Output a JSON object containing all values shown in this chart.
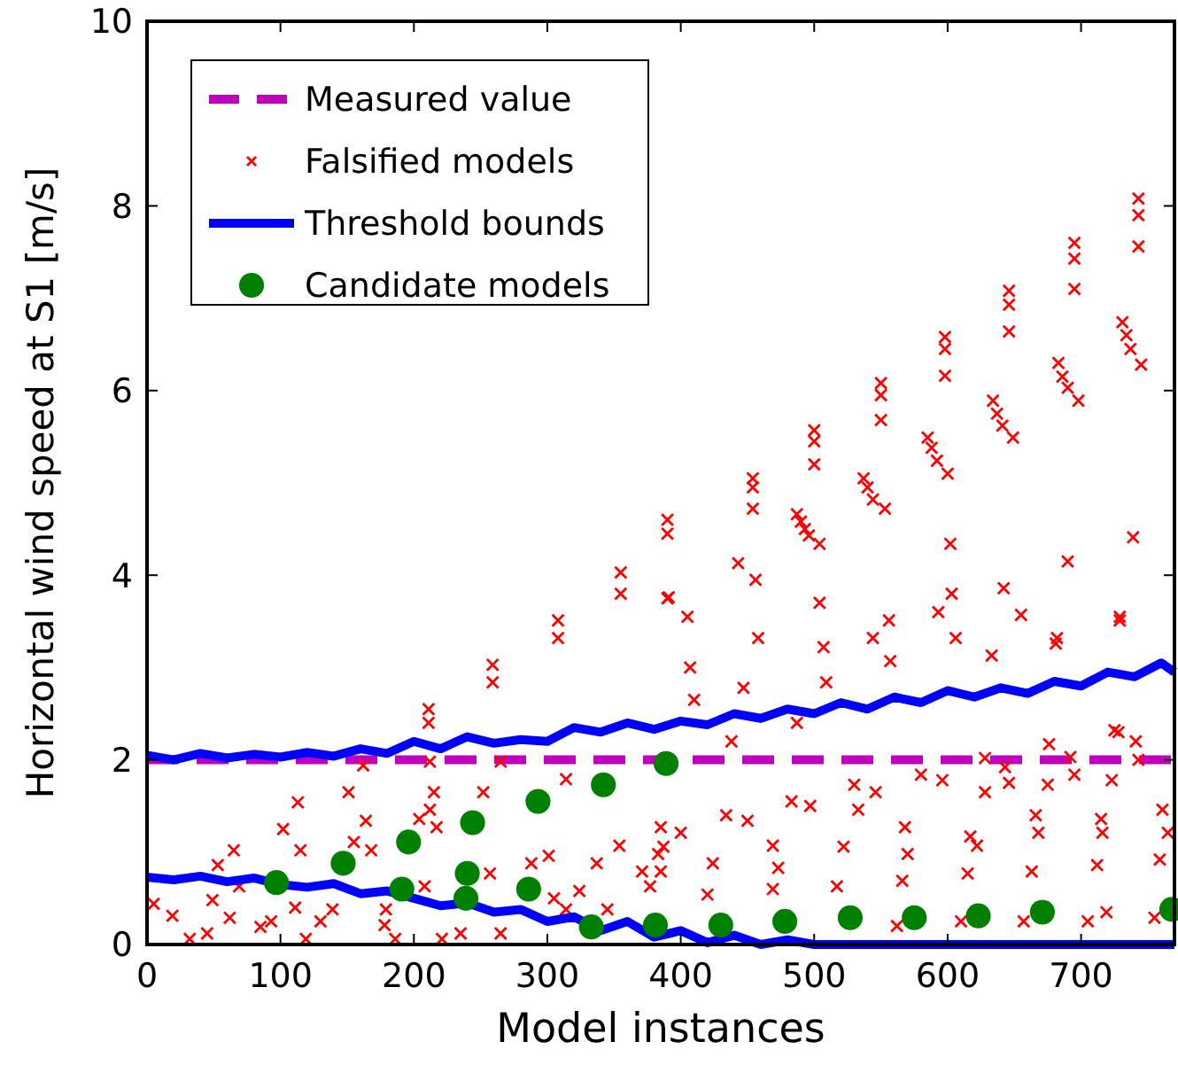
{
  "chart_data": {
    "type": "scatter",
    "xlabel": "Model instances",
    "ylabel": "Horizontal wind speed at S1 [m/s]",
    "xlim": [
      0,
      770
    ],
    "ylim": [
      0,
      10
    ],
    "xticks": [
      0,
      100,
      200,
      300,
      400,
      500,
      600,
      700
    ],
    "yticks": [
      0,
      2,
      4,
      6,
      8,
      10
    ],
    "grid": false,
    "legend": "top left",
    "series": [
      {
        "name": "Measured value",
        "type": "line",
        "color": "#bf00bf",
        "line_style": "dashed",
        "x": [
          0,
          770
        ],
        "values": [
          2,
          2
        ]
      },
      {
        "name": "Falsified models",
        "color": "#ff0000",
        "marker": "cross",
        "x": [
          211,
          211,
          259,
          259,
          308,
          308,
          355,
          355,
          391,
          390,
          390,
          390,
          454,
          454,
          454,
          500,
          500,
          500,
          550,
          550,
          550,
          598,
          598,
          598,
          646,
          646,
          646,
          695,
          695,
          695,
          743,
          743,
          743,
          487,
          490,
          493,
          496,
          504,
          537,
          540,
          544,
          553,
          585,
          588,
          592,
          600,
          634,
          637,
          641,
          649,
          683,
          686,
          690,
          698,
          731,
          734,
          737,
          745,
          385,
          387,
          385,
          400,
          420,
          424,
          434,
          450,
          469,
          469,
          473,
          483,
          497,
          517,
          522,
          530,
          533,
          546,
          566,
          568,
          570,
          580,
          596,
          615,
          617,
          622,
          628,
          643,
          663,
          666,
          668,
          675,
          692,
          695,
          712,
          715,
          716,
          723,
          728,
          741,
          743,
          759,
          761,
          765,
          562,
          610,
          657,
          705,
          719,
          755,
          628,
          646,
          676,
          725,
          410,
          438,
          487,
          447,
          509,
          557,
          633,
          681,
          729,
          407,
          405,
          443,
          456,
          458,
          504,
          507,
          556,
          544,
          603,
          593,
          606,
          642,
          655,
          690,
          682,
          729,
          739,
          602,
          5,
          19,
          32,
          45,
          49,
          62,
          53,
          65,
          69,
          85,
          93,
          102,
          113,
          115,
          111,
          119,
          130,
          139,
          151,
          164,
          155,
          168,
          178,
          186,
          179,
          204,
          215,
          217,
          208,
          221,
          235,
          252,
          257,
          265,
          288,
          301,
          305,
          314,
          324,
          337,
          345,
          354,
          371,
          383,
          377,
          265,
          314,
          162,
          212,
          212
        ],
        "values": [
          2.55,
          2.4,
          3.03,
          2.84,
          3.51,
          3.32,
          4.03,
          3.8,
          3.76,
          4.6,
          4.45,
          3.75,
          5.05,
          4.95,
          4.72,
          5.57,
          5.45,
          5.2,
          6.08,
          5.95,
          5.68,
          6.58,
          6.45,
          6.16,
          7.08,
          6.93,
          6.64,
          7.6,
          7.43,
          7.1,
          8.08,
          7.9,
          7.56,
          4.66,
          4.58,
          4.5,
          4.43,
          4.34,
          5.05,
          4.95,
          4.82,
          4.72,
          5.49,
          5.38,
          5.24,
          5.1,
          5.89,
          5.75,
          5.62,
          5.49,
          6.3,
          6.15,
          6.03,
          5.89,
          6.74,
          6.6,
          6.45,
          6.28,
          1.27,
          1.06,
          0.79,
          1.21,
          0.54,
          0.88,
          1.4,
          1.34,
          1.07,
          0.6,
          0.83,
          1.55,
          1.5,
          0.63,
          1.06,
          1.73,
          1.46,
          1.65,
          0.69,
          1.27,
          0.98,
          1.84,
          1.78,
          0.77,
          1.17,
          1.07,
          1.65,
          1.92,
          0.79,
          1.4,
          1.21,
          1.73,
          2.03,
          1.84,
          0.86,
          1.36,
          1.21,
          1.78,
          2.3,
          2.2,
          2.0,
          0.92,
          1.46,
          1.21,
          0.2,
          0.25,
          0.25,
          0.25,
          0.35,
          0.29,
          2.02,
          1.75,
          2.17,
          2.32,
          2.65,
          2.2,
          2.4,
          2.78,
          2.84,
          3.07,
          3.13,
          3.26,
          3.51,
          3.0,
          3.55,
          4.13,
          3.95,
          3.32,
          3.7,
          3.22,
          3.51,
          3.32,
          3.8,
          3.6,
          3.32,
          3.86,
          3.57,
          4.15,
          3.32,
          3.55,
          4.41,
          4.34,
          0.44,
          0.31,
          0.06,
          0.12,
          0.48,
          0.29,
          0.86,
          1.02,
          0.63,
          0.19,
          0.25,
          1.25,
          1.54,
          1.02,
          0.4,
          0.06,
          0.25,
          0.38,
          1.65,
          1.34,
          1.11,
          1.02,
          0.21,
          0.06,
          0.38,
          1.36,
          1.65,
          1.27,
          0.63,
          0.06,
          0.12,
          1.65,
          0.77,
          0.12,
          0.88,
          0.96,
          0.5,
          0.38,
          0.58,
          0.88,
          0.38,
          1.07,
          0.79,
          0.98,
          0.63,
          1.98,
          1.79,
          1.94,
          1.98,
          1.46
        ]
      },
      {
        "name": "Threshold bounds",
        "type": "line",
        "color": "#0000ff",
        "line_style": "solid",
        "x": [
          0,
          20,
          40,
          60,
          80,
          100,
          120,
          140,
          160,
          180,
          200,
          220,
          240,
          260,
          280,
          300,
          320,
          340,
          360,
          380,
          400,
          420,
          440,
          460,
          480,
          500,
          520,
          540,
          560,
          580,
          600,
          620,
          640,
          660,
          680,
          700,
          720,
          740,
          760,
          770
        ],
        "values": [
          2.05,
          2.0,
          2.07,
          2.02,
          2.06,
          2.03,
          2.08,
          2.04,
          2.12,
          2.07,
          2.2,
          2.12,
          2.25,
          2.18,
          2.22,
          2.2,
          2.35,
          2.3,
          2.4,
          2.33,
          2.42,
          2.38,
          2.5,
          2.45,
          2.55,
          2.5,
          2.62,
          2.55,
          2.68,
          2.62,
          2.75,
          2.68,
          2.78,
          2.72,
          2.85,
          2.8,
          2.95,
          2.9,
          3.05,
          2.95
        ]
      },
      {
        "type": "line",
        "color": "#0000ff",
        "line_style": "solid",
        "x": [
          0,
          20,
          40,
          60,
          80,
          100,
          120,
          140,
          160,
          180,
          200,
          220,
          240,
          260,
          280,
          300,
          320,
          340,
          360,
          380,
          400,
          420,
          440,
          460,
          480,
          500,
          540,
          600,
          700,
          770
        ],
        "values": [
          0.73,
          0.7,
          0.74,
          0.68,
          0.72,
          0.65,
          0.62,
          0.66,
          0.55,
          0.58,
          0.5,
          0.42,
          0.45,
          0.35,
          0.38,
          0.25,
          0.3,
          0.15,
          0.25,
          0.08,
          0.15,
          0.02,
          0.1,
          0,
          0.05,
          0,
          0,
          0,
          0,
          0
        ]
      },
      {
        "name": "Candidate models",
        "color": "#008000",
        "marker": "circle",
        "x": [
          97,
          147,
          196,
          244,
          293,
          342,
          389,
          191,
          240,
          239,
          286,
          333,
          381,
          430,
          478,
          527,
          575,
          623,
          671,
          768
        ],
        "values": [
          0.67,
          0.88,
          1.11,
          1.32,
          1.55,
          1.73,
          1.96,
          0.6,
          0.77,
          0.5,
          0.6,
          0.19,
          0.21,
          0.21,
          0.25,
          0.29,
          0.29,
          0.31,
          0.35,
          0.38
        ]
      }
    ]
  }
}
